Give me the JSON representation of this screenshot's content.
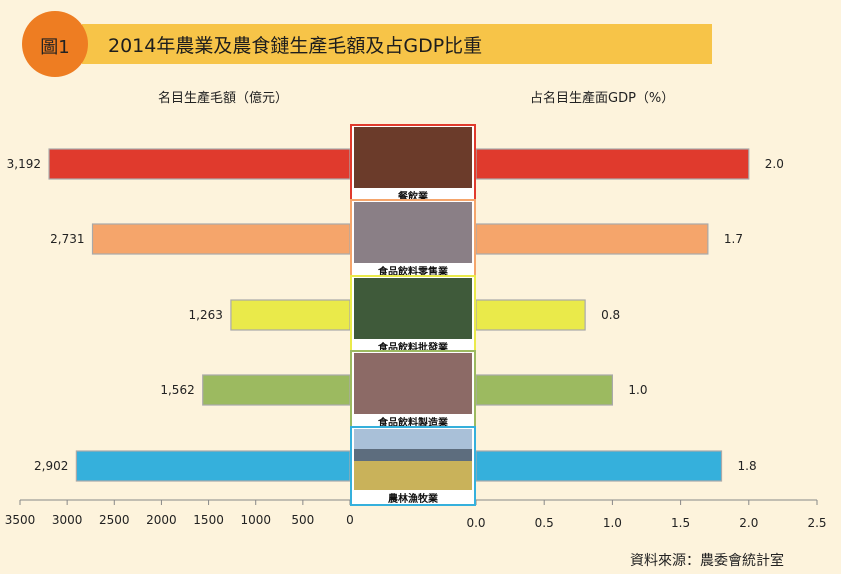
{
  "header": {
    "badge": "圖1",
    "title": "2014年農業及農食鏈生產毛額及占GDP比重"
  },
  "source": "資料來源：農委會統計室",
  "chart_data": {
    "type": "bar",
    "orientation": "horizontal-butterfly",
    "categories": [
      "餐飲業",
      "食品飲料零售業",
      "食品飲料批發業",
      "食品飲料製造業",
      "農林漁牧業"
    ],
    "category_colors": [
      "#e03a2d",
      "#f5a56b",
      "#eaea4a",
      "#9cba60",
      "#35b0dc"
    ],
    "category_border_colors": [
      "#e03a2d",
      "#f5a56b",
      "#eaea4a",
      "#9cba60",
      "#35b0dc"
    ],
    "left": {
      "title": "名目生產毛額（億元）",
      "values": [
        3192,
        2731,
        1263,
        1562,
        2902
      ],
      "labels": [
        "3,192",
        "2,731",
        "1,263",
        "1,562",
        "2,902"
      ],
      "xlim": [
        3500,
        0
      ],
      "ticks": [
        "3500",
        "3000",
        "2500",
        "2000",
        "1500",
        "1000",
        "500",
        "0"
      ]
    },
    "right": {
      "title": "占名目生產面GDP（%）",
      "values": [
        2.0,
        1.7,
        0.8,
        1.0,
        1.8
      ],
      "labels": [
        "2.0",
        "1.7",
        "0.8",
        "1.0",
        "1.8"
      ],
      "xlim": [
        0,
        2.5
      ],
      "ticks": [
        "0.0",
        "0.5",
        "1.0",
        "1.5",
        "2.0",
        "2.5"
      ]
    }
  }
}
